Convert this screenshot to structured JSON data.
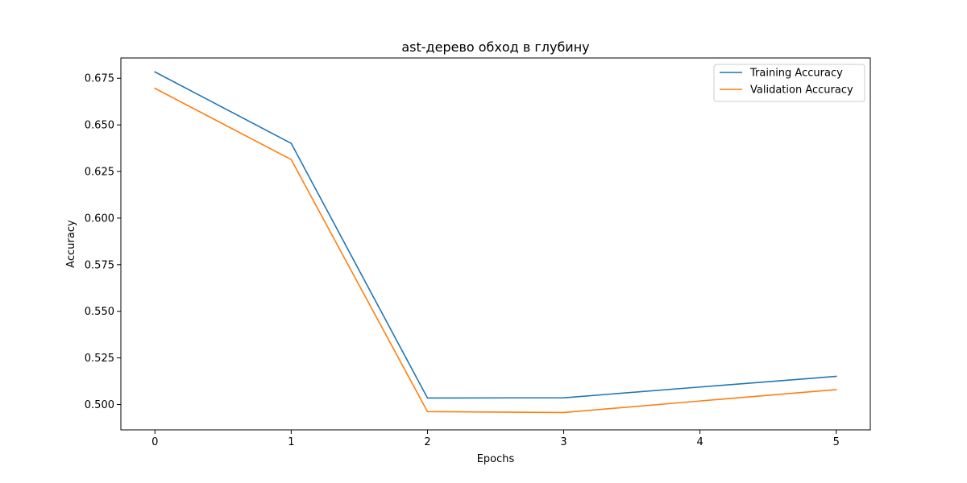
{
  "chart_data": {
    "type": "line",
    "title": "ast-дерево обход в глубину",
    "xlabel": "Epochs",
    "ylabel": "Accuracy",
    "x": [
      0,
      1,
      2,
      3,
      4,
      5
    ],
    "xticks": [
      "0",
      "1",
      "2",
      "3",
      "4",
      "5"
    ],
    "yticks": [
      "0.500",
      "0.525",
      "0.550",
      "0.575",
      "0.600",
      "0.625",
      "0.650",
      "0.675"
    ],
    "xlim": [
      -0.25,
      5.25
    ],
    "ylim": [
      0.4864,
      0.6859
    ],
    "grid": false,
    "legend_position": "top-right",
    "series": [
      {
        "name": "Training Accuracy",
        "color": "#1f77b4",
        "values": [
          0.6784,
          0.6401,
          0.5035,
          0.5036,
          0.5094,
          0.5151
        ]
      },
      {
        "name": "Validation Accuracy",
        "color": "#ff7f0e",
        "values": [
          0.6696,
          0.6314,
          0.4962,
          0.4957,
          0.5019,
          0.508
        ]
      }
    ]
  }
}
